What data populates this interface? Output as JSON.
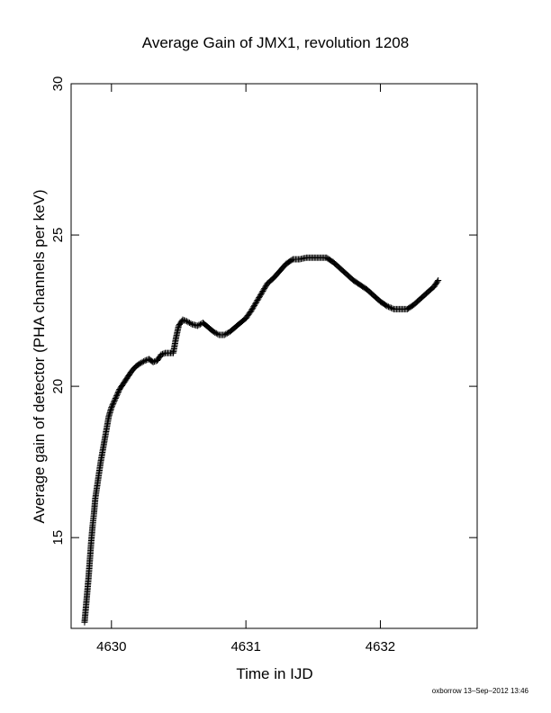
{
  "chart_data": {
    "type": "scatter",
    "title": "Average Gain of JMX1, revolution 1208",
    "xlabel": "Time in IJD",
    "ylabel": "Average gain of detector (PHA channels per keV)",
    "xlim": [
      4629.7,
      4632.72
    ],
    "ylim": [
      12,
      30
    ],
    "xticks": [
      4630,
      4631,
      4632
    ],
    "xtick_labels": [
      "4630",
      "4631",
      "4632"
    ],
    "yticks": [
      15,
      20,
      25,
      30
    ],
    "ytick_labels": [
      "15",
      "20",
      "25",
      "30"
    ],
    "grid": false,
    "marker": "plus",
    "series": [
      {
        "points": [
          [
            4629.8,
            12.2
          ],
          [
            4629.81,
            12.7
          ],
          [
            4629.82,
            13.2
          ],
          [
            4629.83,
            13.7
          ],
          [
            4629.84,
            14.3
          ],
          [
            4629.85,
            14.9
          ],
          [
            4629.86,
            15.4
          ],
          [
            4629.87,
            15.8
          ],
          [
            4629.88,
            16.3
          ],
          [
            4629.9,
            16.9
          ],
          [
            4629.92,
            17.5
          ],
          [
            4629.94,
            18.0
          ],
          [
            4629.96,
            18.5
          ],
          [
            4629.98,
            19.0
          ],
          [
            4630.0,
            19.3
          ],
          [
            4630.03,
            19.6
          ],
          [
            4630.06,
            19.9
          ],
          [
            4630.09,
            20.1
          ],
          [
            4630.12,
            20.3
          ],
          [
            4630.15,
            20.5
          ],
          [
            4630.18,
            20.65
          ],
          [
            4630.21,
            20.75
          ],
          [
            4630.25,
            20.85
          ],
          [
            4630.28,
            20.9
          ],
          [
            4630.31,
            20.8
          ],
          [
            4630.34,
            20.85
          ],
          [
            4630.37,
            21.05
          ],
          [
            4630.4,
            21.1
          ],
          [
            4630.43,
            21.1
          ],
          [
            4630.46,
            21.1
          ],
          [
            4630.48,
            21.6
          ],
          [
            4630.5,
            22.0
          ],
          [
            4630.53,
            22.2
          ],
          [
            4630.56,
            22.15
          ],
          [
            4630.6,
            22.05
          ],
          [
            4630.64,
            22.0
          ],
          [
            4630.68,
            22.1
          ],
          [
            4630.72,
            21.95
          ],
          [
            4630.76,
            21.8
          ],
          [
            4630.8,
            21.7
          ],
          [
            4630.84,
            21.7
          ],
          [
            4630.88,
            21.8
          ],
          [
            4630.92,
            21.95
          ],
          [
            4630.96,
            22.1
          ],
          [
            4631.0,
            22.25
          ],
          [
            4631.04,
            22.5
          ],
          [
            4631.08,
            22.8
          ],
          [
            4631.12,
            23.1
          ],
          [
            4631.16,
            23.4
          ],
          [
            4631.2,
            23.55
          ],
          [
            4631.25,
            23.8
          ],
          [
            4631.3,
            24.05
          ],
          [
            4631.35,
            24.2
          ],
          [
            4631.4,
            24.2
          ],
          [
            4631.45,
            24.25
          ],
          [
            4631.5,
            24.25
          ],
          [
            4631.55,
            24.25
          ],
          [
            4631.6,
            24.25
          ],
          [
            4631.65,
            24.1
          ],
          [
            4631.7,
            23.9
          ],
          [
            4631.75,
            23.7
          ],
          [
            4631.8,
            23.5
          ],
          [
            4631.85,
            23.35
          ],
          [
            4631.9,
            23.2
          ],
          [
            4631.95,
            23.0
          ],
          [
            4632.0,
            22.8
          ],
          [
            4632.05,
            22.65
          ],
          [
            4632.1,
            22.55
          ],
          [
            4632.15,
            22.55
          ],
          [
            4632.2,
            22.55
          ],
          [
            4632.25,
            22.7
          ],
          [
            4632.3,
            22.9
          ],
          [
            4632.35,
            23.1
          ],
          [
            4632.4,
            23.3
          ],
          [
            4632.43,
            23.5
          ]
        ]
      }
    ]
  },
  "footer": {
    "credit": "oxborrow 13–Sep–2012 13:46"
  }
}
